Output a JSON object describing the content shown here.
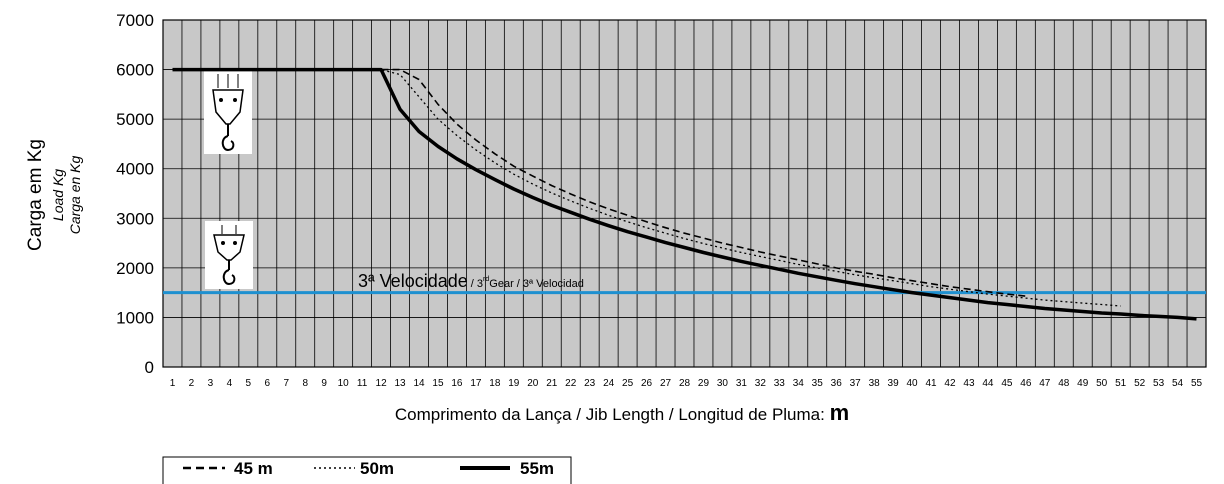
{
  "chart_data": {
    "type": "line",
    "ylabel": "Carga em Kg",
    "ylabel_sub1": "Load Kg",
    "ylabel_sub2": "Carga en Kg",
    "xlabel": "Comprimento da Lança / Jib Length / Longitud de Pluma: ",
    "xlabel_unit": "m",
    "ylim": [
      0,
      7000
    ],
    "yticks": [
      0,
      1000,
      2000,
      3000,
      4000,
      5000,
      6000,
      7000
    ],
    "xlim": [
      1,
      55
    ],
    "xticks": [
      1,
      2,
      3,
      4,
      5,
      6,
      7,
      8,
      9,
      10,
      11,
      12,
      13,
      14,
      15,
      16,
      17,
      18,
      19,
      20,
      21,
      22,
      23,
      24,
      25,
      26,
      27,
      28,
      29,
      30,
      31,
      32,
      33,
      34,
      35,
      36,
      37,
      38,
      39,
      40,
      41,
      42,
      43,
      44,
      45,
      46,
      47,
      48,
      49,
      50,
      51,
      52,
      53,
      54,
      55
    ],
    "grid": true,
    "background_color": "#c8c8c8",
    "annotation": {
      "main": "3ª Velocidade",
      "sub_a": " / 3",
      "sup": "rd",
      "sub_b": "Gear / 3ª Velocidad",
      "y": 1500,
      "color": "#1e90d0"
    },
    "series": [
      {
        "name": "45 m",
        "style": "dashed",
        "x": [
          1,
          12,
          13,
          14,
          15,
          16,
          17,
          18,
          19,
          20,
          21,
          22,
          23,
          24,
          25,
          26,
          27,
          28,
          29,
          30,
          31,
          32,
          33,
          34,
          35,
          36,
          37,
          38,
          39,
          40,
          41,
          42,
          43,
          44,
          45,
          46
        ],
        "y": [
          6000,
          6000,
          6000,
          5800,
          5300,
          4900,
          4580,
          4300,
          4050,
          3850,
          3660,
          3490,
          3330,
          3190,
          3060,
          2930,
          2810,
          2700,
          2600,
          2500,
          2410,
          2320,
          2240,
          2160,
          2080,
          2000,
          1930,
          1870,
          1800,
          1740,
          1680,
          1620,
          1570,
          1520,
          1470,
          1430
        ]
      },
      {
        "name": "50m",
        "style": "dotted",
        "x": [
          1,
          12,
          13,
          14,
          15,
          16,
          17,
          18,
          19,
          20,
          21,
          22,
          23,
          24,
          25,
          26,
          27,
          28,
          29,
          30,
          31,
          32,
          33,
          34,
          35,
          36,
          37,
          38,
          39,
          40,
          41,
          42,
          43,
          44,
          45,
          46,
          47,
          48,
          49,
          50,
          51
        ],
        "y": [
          6000,
          6000,
          5900,
          5450,
          5000,
          4670,
          4380,
          4120,
          3890,
          3690,
          3510,
          3350,
          3200,
          3060,
          2930,
          2810,
          2700,
          2590,
          2490,
          2400,
          2310,
          2230,
          2150,
          2070,
          2000,
          1930,
          1860,
          1800,
          1740,
          1680,
          1620,
          1570,
          1520,
          1470,
          1430,
          1390,
          1350,
          1320,
          1290,
          1260,
          1230
        ]
      },
      {
        "name": "55m",
        "style": "solid",
        "x": [
          1,
          12,
          13,
          14,
          15,
          16,
          17,
          18,
          19,
          20,
          21,
          22,
          23,
          24,
          25,
          26,
          27,
          28,
          29,
          30,
          31,
          32,
          33,
          34,
          35,
          36,
          37,
          38,
          39,
          40,
          41,
          42,
          43,
          44,
          45,
          46,
          47,
          48,
          49,
          50,
          51,
          52,
          53,
          54,
          55
        ],
        "y": [
          6000,
          6000,
          5200,
          4750,
          4450,
          4200,
          3980,
          3780,
          3590,
          3420,
          3260,
          3120,
          2980,
          2850,
          2730,
          2620,
          2510,
          2410,
          2310,
          2220,
          2130,
          2050,
          1970,
          1890,
          1820,
          1750,
          1680,
          1620,
          1560,
          1500,
          1450,
          1400,
          1350,
          1300,
          1260,
          1220,
          1180,
          1150,
          1120,
          1090,
          1070,
          1040,
          1020,
          1000,
          970
        ]
      }
    ]
  }
}
